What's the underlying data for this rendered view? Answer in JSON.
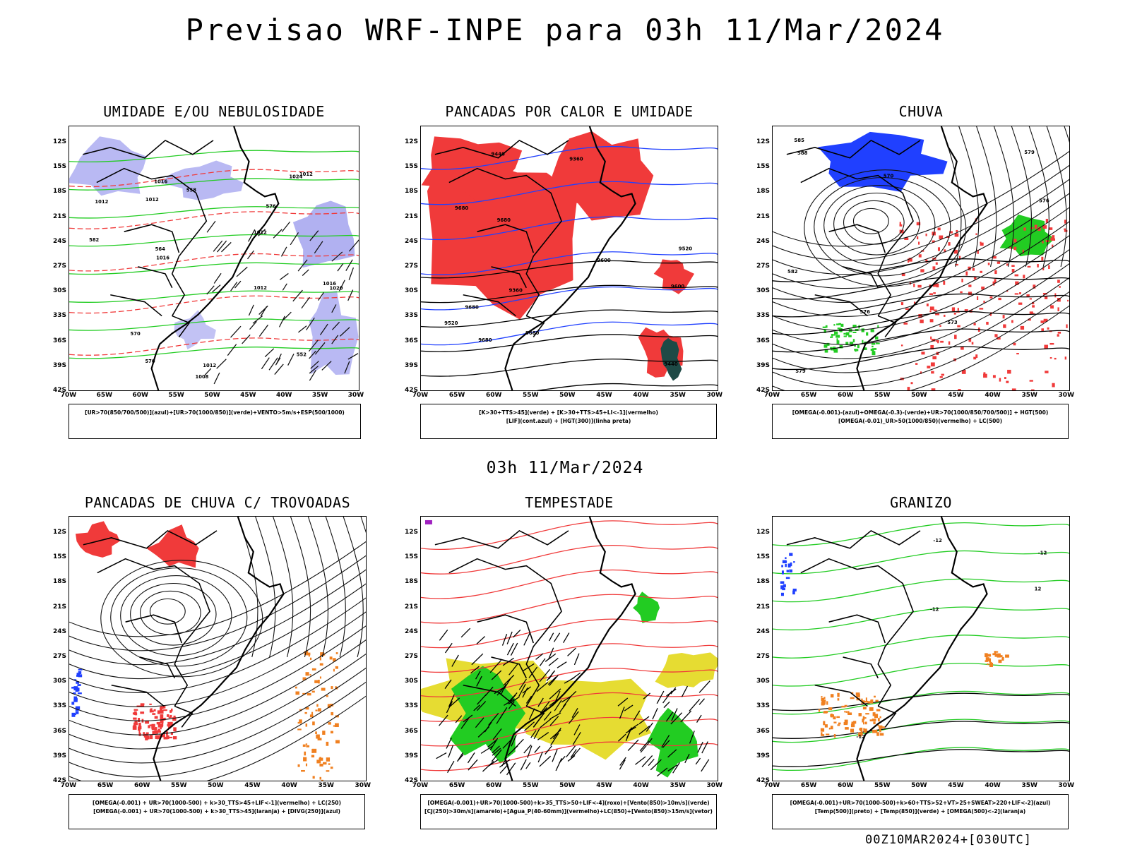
{
  "title": "Previsao WRF-INPE  para 03h 11/Mar/2024",
  "row_time": "03h 11/Mar/2024",
  "footer": "00Z10MAR2024+[030UTC]",
  "axes": {
    "lat_ticks": [
      "12S",
      "15S",
      "18S",
      "21S",
      "24S",
      "27S",
      "30S",
      "33S",
      "36S",
      "39S",
      "42S"
    ],
    "lon_ticks": [
      "70W",
      "65W",
      "60W",
      "55W",
      "50W",
      "45W",
      "40W",
      "35W",
      "30W"
    ]
  },
  "colors": {
    "red": "#f03a3a",
    "green": "#22cc22",
    "blue": "#2040ff",
    "lavender": "#a8a8f0",
    "yellow": "#e6dc32",
    "orange": "#f08020",
    "darkteal": "#1e4a46",
    "purple": "#a020c0"
  },
  "panels": [
    {
      "id": "umidade",
      "title": "UMIDADE E/OU NEBULOSIDADE",
      "legend_lines": [
        "[UR>70(850/700/500)](azul)+[UR>70(1000/850)](verde)+VENTO>5m/s+ESP(500/1000)"
      ],
      "contour_labels": [
        "1012",
        "1012",
        "1012",
        "1012",
        "1024",
        "1008",
        "1012",
        "1016",
        "1012",
        "1020",
        "1016",
        "1016",
        "576",
        "570",
        "582",
        "570",
        "564",
        "558",
        "552"
      ]
    },
    {
      "id": "pancadas-calor",
      "title": "PANCADAS POR CALOR E UMIDADE",
      "legend_lines": [
        "[K>30+TTS>45](verde) + [K>30+TTS>45+LI<-1](vermelho)",
        "[LIF](cont.azul) + [HGT(300)](linha preta)"
      ],
      "contour_labels": [
        "9680",
        "9680",
        "9680",
        "9680",
        "9600",
        "9520",
        "9440",
        "9360",
        "9680",
        "9440",
        "9360",
        "9520",
        "9600"
      ]
    },
    {
      "id": "chuva",
      "title": "CHUVA",
      "legend_lines": [
        "[OMEGA(-0.001)-(azul)+OMEGA(-0.3)-(verde)+UR>70(1000/850/700/500)] + HGT(500)",
        "[OMEGA(-0.01)_UR>50(1000/850)(vermelho) + LC(500)"
      ],
      "contour_labels": [
        "588",
        "585",
        "582",
        "579",
        "576",
        "573",
        "570",
        "576",
        "579"
      ]
    },
    {
      "id": "pancadas-trovoadas",
      "title": "PANCADAS DE CHUVA C/ TROVOADAS",
      "legend_lines": [
        "[OMEGA(-0.001) + UR>70(1000-500) + k>30_TTS>45+LIF<-1](vermelho) + LC(250)",
        "[OMEGA(-0.001) + UR>70(1000-500) + k>30_TTS>45](laranja) + [DIVG(250)](azul)"
      ],
      "contour_labels": []
    },
    {
      "id": "tempestade",
      "title": "TEMPESTADE",
      "legend_lines": [
        "[OMEGA(-0.001)+UR>70(1000-500)+k>35_TTS>50+LIF<-4](roxo)+[Vento(850)>10m/s](verde)",
        "[CJ(250)>30m/s](amarelo)+[Agua_P(40-60mm)](vermelho)+LC(850)+[Vento(850)>15m/s](vetor)"
      ],
      "contour_labels": []
    },
    {
      "id": "granizo",
      "title": "GRANIZO",
      "legend_lines": [
        "[OMEGA(-0.001)+UR>70(1000-500)+k>60+TTS>52+VT>25+SWEAT>220+LIF<-2](azul)",
        "[Temp(500)](preto) + [Temp(850)](verde) + [OMEGA(500)<-2](laranja)"
      ],
      "contour_labels": [
        "-12",
        "-12",
        "-12",
        "-12",
        "12"
      ]
    }
  ],
  "chart_data": [
    {
      "type": "map",
      "title": "UMIDADE E/OU NEBULOSIDADE",
      "xlabel": "",
      "ylabel": "",
      "xlim": [
        "70W",
        "30W"
      ],
      "ylim": [
        "42S",
        "10S"
      ]
    },
    {
      "type": "map",
      "title": "PANCADAS POR CALOR E UMIDADE",
      "xlabel": "",
      "ylabel": "",
      "xlim": [
        "70W",
        "30W"
      ],
      "ylim": [
        "42S",
        "10S"
      ]
    },
    {
      "type": "map",
      "title": "CHUVA",
      "xlabel": "",
      "ylabel": "",
      "xlim": [
        "70W",
        "30W"
      ],
      "ylim": [
        "42S",
        "10S"
      ]
    },
    {
      "type": "map",
      "title": "PANCADAS DE CHUVA C/ TROVOADAS",
      "xlabel": "",
      "ylabel": "",
      "xlim": [
        "70W",
        "30W"
      ],
      "ylim": [
        "42S",
        "10S"
      ]
    },
    {
      "type": "map",
      "title": "TEMPESTADE",
      "xlabel": "",
      "ylabel": "",
      "xlim": [
        "70W",
        "30W"
      ],
      "ylim": [
        "42S",
        "10S"
      ]
    },
    {
      "type": "map",
      "title": "GRANIZO",
      "xlabel": "",
      "ylabel": "",
      "xlim": [
        "70W",
        "30W"
      ],
      "ylim": [
        "42S",
        "10S"
      ]
    }
  ]
}
